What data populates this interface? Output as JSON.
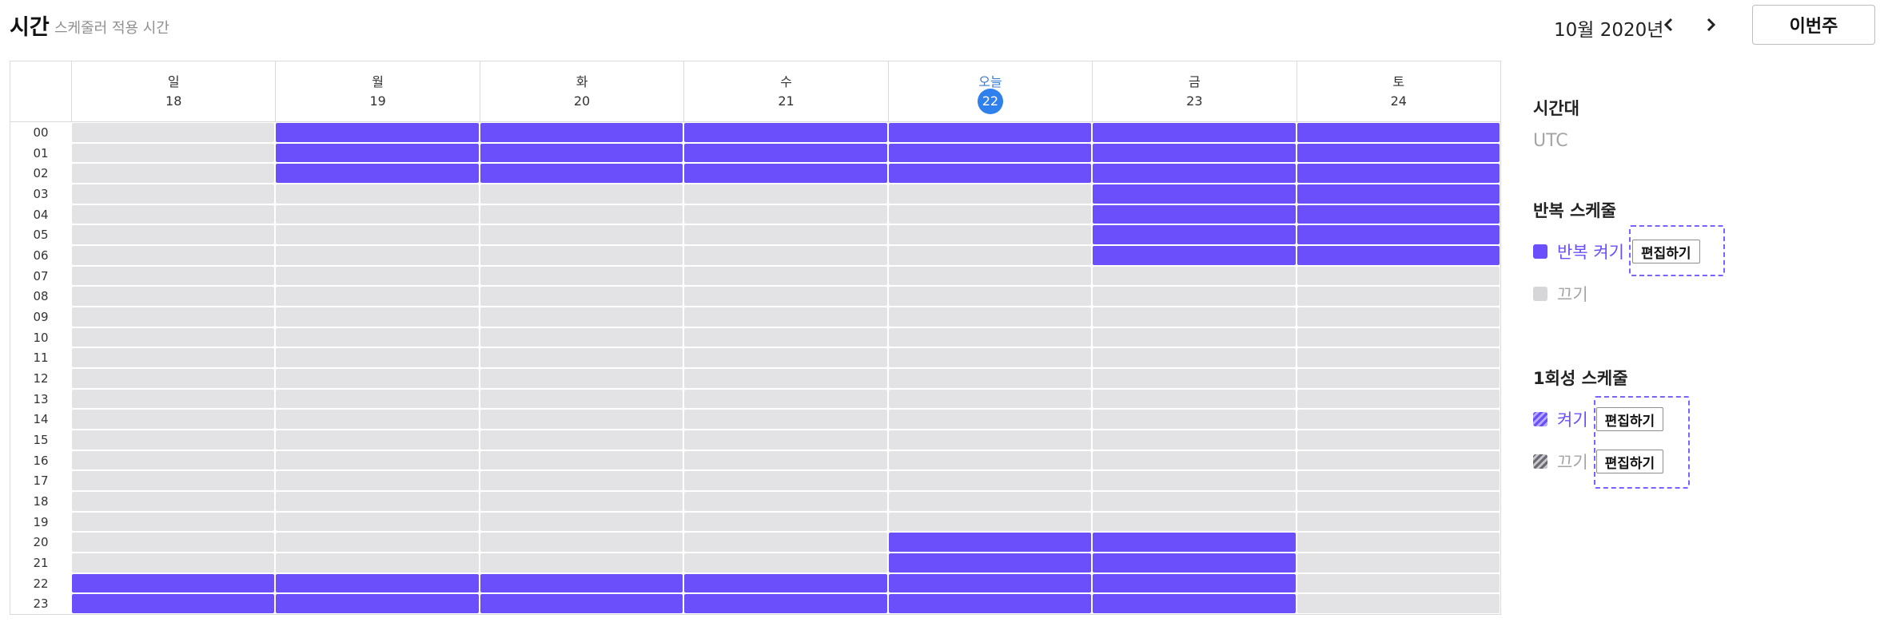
{
  "header": {
    "title": "시간",
    "subtitle": "스케줄러 적용 시간",
    "month_label": "10월 2020년",
    "this_week_label": "이번주"
  },
  "calendar": {
    "days": [
      {
        "name": "일",
        "date": "18",
        "today": false
      },
      {
        "name": "월",
        "date": "19",
        "today": false
      },
      {
        "name": "화",
        "date": "20",
        "today": false
      },
      {
        "name": "수",
        "date": "21",
        "today": false
      },
      {
        "name": "오늘",
        "date": "22",
        "today": true
      },
      {
        "name": "금",
        "date": "23",
        "today": false
      },
      {
        "name": "토",
        "date": "24",
        "today": false
      }
    ],
    "hours": [
      "00",
      "01",
      "02",
      "03",
      "04",
      "05",
      "06",
      "07",
      "08",
      "09",
      "10",
      "11",
      "12",
      "13",
      "14",
      "15",
      "16",
      "17",
      "18",
      "19",
      "20",
      "21",
      "22",
      "23"
    ],
    "on_slots": [
      [
        22,
        23
      ],
      [
        0,
        1,
        2,
        22,
        23
      ],
      [
        0,
        1,
        2,
        22,
        23
      ],
      [
        0,
        1,
        2,
        22,
        23
      ],
      [
        0,
        1,
        2,
        20,
        21,
        22,
        23
      ],
      [
        0,
        1,
        2,
        3,
        4,
        5,
        6,
        20,
        21,
        22,
        23
      ],
      [
        0,
        1,
        2,
        3,
        4,
        5,
        6
      ]
    ]
  },
  "panel": {
    "timezone_title": "시간대",
    "timezone_value": "UTC",
    "repeat_title": "반복 스케줄",
    "repeat_on_label": "반복 켜기",
    "repeat_off_label": "끄기",
    "once_title": "1회성 스케줄",
    "once_on_label": "켜기",
    "once_off_label": "끄기",
    "edit_label": "편집하기"
  },
  "colors": {
    "on": "#6a4ffb",
    "off": "#e3e3e6",
    "today": "#2f80ed"
  }
}
